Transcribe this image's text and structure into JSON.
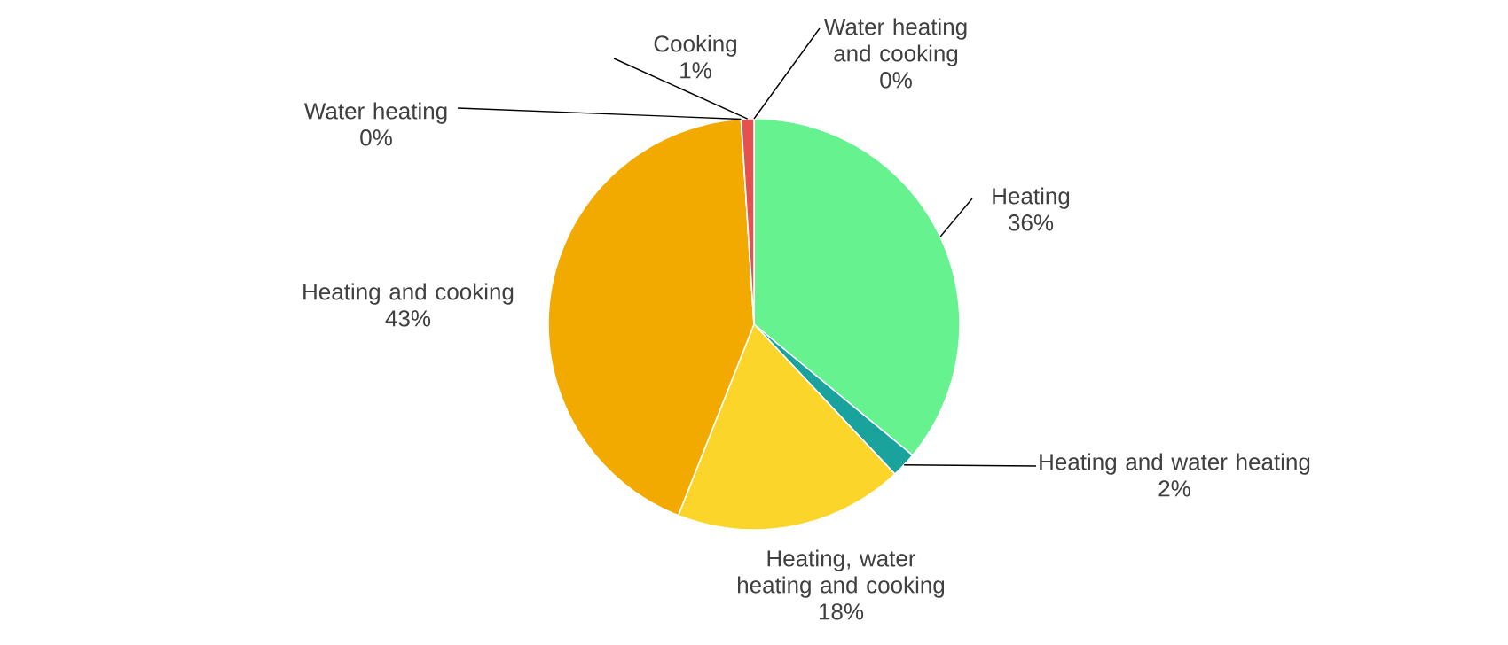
{
  "chart_data": {
    "type": "pie",
    "categories": [
      "Water heating and cooking",
      "Heating",
      "Heating and water heating",
      "Heating, water heating and cooking",
      "Heating and cooking",
      "Water heating",
      "Cooking"
    ],
    "values": [
      0,
      36,
      2,
      18,
      43,
      0,
      1
    ],
    "value_labels": [
      "0%",
      "36%",
      "2%",
      "18%",
      "43%",
      "0%",
      "1%"
    ],
    "colors": [
      "#4472c4",
      "#66f28f",
      "#1aa39c",
      "#fcd52a",
      "#f2a900",
      "#a5a5a5",
      "#e4514f"
    ]
  }
}
